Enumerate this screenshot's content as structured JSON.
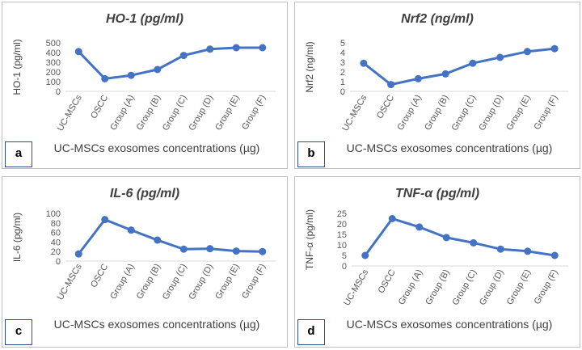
{
  "chart_data": [
    {
      "type": "line",
      "panel_label": "a",
      "title": "HO-1 (pg/ml)",
      "ylabel": "HO-1 (pg/ml)",
      "xlabel": "UC-MSCs exosomes concentrations (µg)",
      "categories": [
        "UC-MSCs",
        "OSCC",
        "Group (A)",
        "Group (B)",
        "Group (C)",
        "Group (D)",
        "Group (E)",
        "Group (F)"
      ],
      "values": [
        410,
        130,
        165,
        225,
        370,
        435,
        450,
        450
      ],
      "ylim": [
        0,
        500
      ],
      "yticks": [
        0,
        100,
        200,
        300,
        400,
        500
      ],
      "color": "#4472c4"
    },
    {
      "type": "line",
      "panel_label": "b",
      "title": "Nrf2 (ng/ml)",
      "ylabel": "Nrf2 (ng/ml)",
      "xlabel": "UC-MSCs exosomes concentrations (µg)",
      "categories": [
        "UC-MSCs",
        "OSCC",
        "Group (A)",
        "Group (B)",
        "Group (C)",
        "Group (D)",
        "Group (E)",
        "Group (F)"
      ],
      "values": [
        2.9,
        0.7,
        1.3,
        1.8,
        2.9,
        3.5,
        4.1,
        4.4
      ],
      "ylim": [
        0,
        5
      ],
      "yticks": [
        0,
        1,
        2,
        3,
        4,
        5
      ],
      "color": "#4472c4"
    },
    {
      "type": "line",
      "panel_label": "c",
      "title": "IL-6 (pg/ml)",
      "ylabel": "IL-6 (pg/ml)",
      "xlabel": "UC-MSCs exosomes concentrations (µg)",
      "categories": [
        "UC-MSCs",
        "OSCC",
        "Group (A)",
        "Group (B)",
        "Group (C)",
        "Group (D)",
        "Group (E)",
        "Group (F)"
      ],
      "values": [
        15,
        87,
        65,
        44,
        25,
        26,
        21,
        20
      ],
      "ylim": [
        0,
        100
      ],
      "yticks": [
        0,
        20,
        40,
        60,
        80,
        100
      ],
      "color": "#4472c4"
    },
    {
      "type": "line",
      "panel_label": "d",
      "title": "TNF-α (pg/ml)",
      "ylabel": "TNF-α (pg/ml)",
      "xlabel": "UC-MSCs exosomes concentrations (µg)",
      "categories": [
        "UC-MSCs",
        "OSCC",
        "Group (A)",
        "Group (B)",
        "Group (C)",
        "Group (D)",
        "Group (E)",
        "Group (F)"
      ],
      "values": [
        5,
        22.5,
        18.5,
        13.5,
        11,
        8,
        7,
        5
      ],
      "ylim": [
        0,
        25
      ],
      "yticks": [
        0,
        5,
        10,
        15,
        20,
        25
      ],
      "color": "#4472c4"
    }
  ]
}
